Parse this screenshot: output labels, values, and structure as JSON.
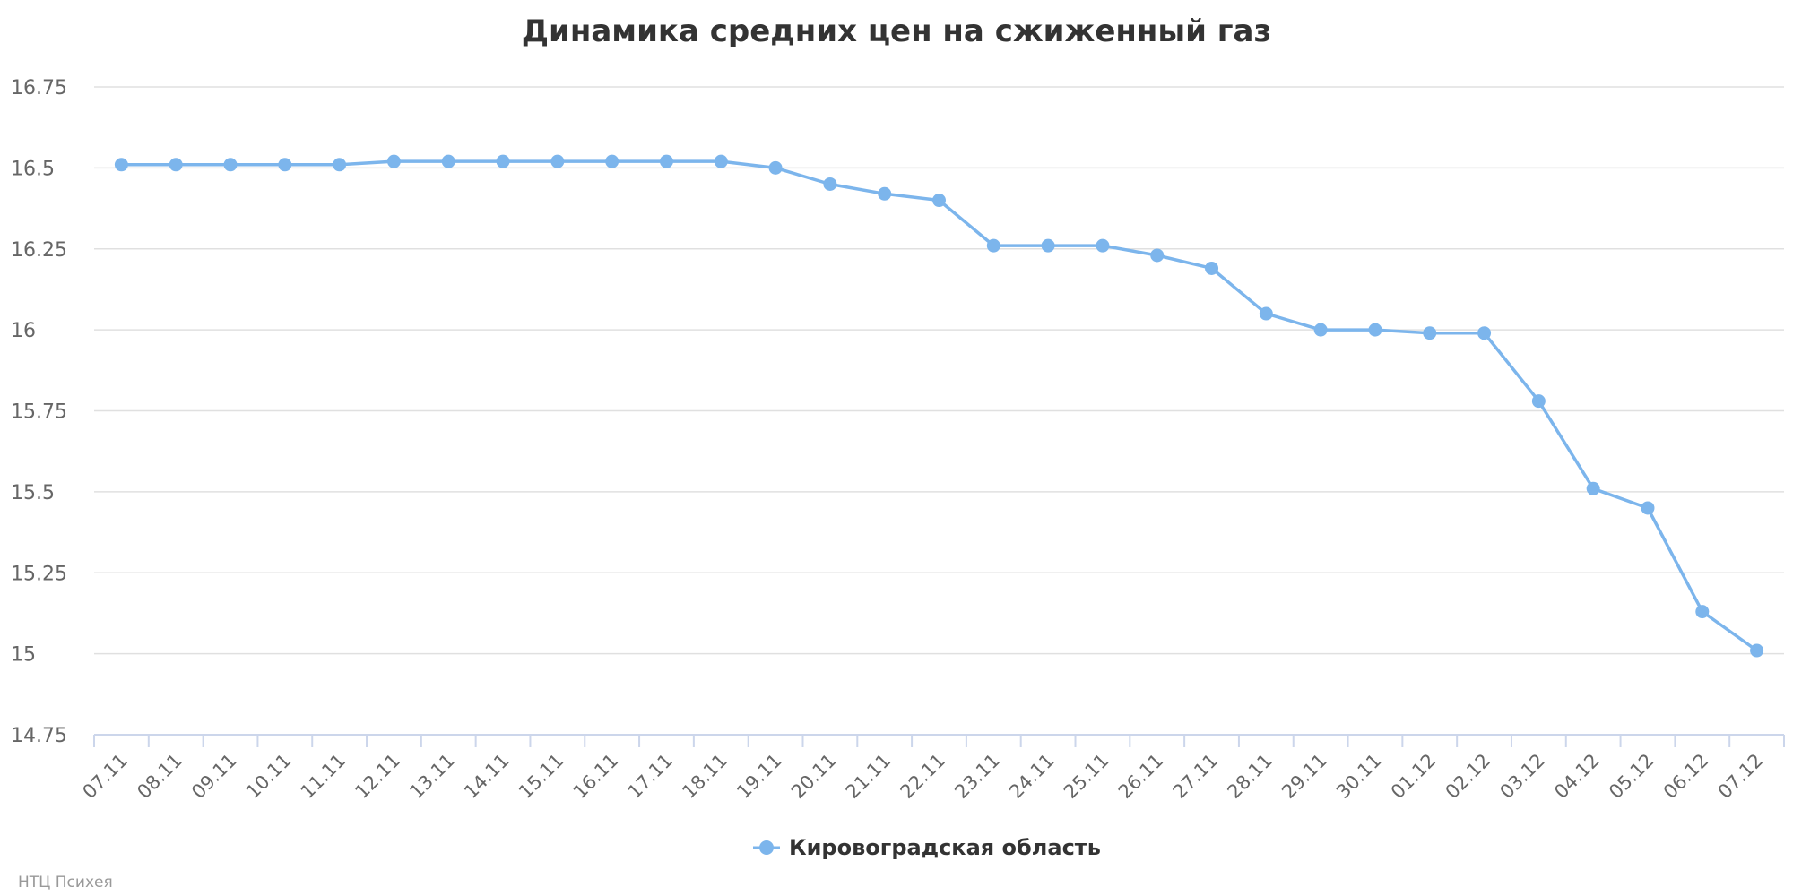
{
  "chart_data": {
    "type": "line",
    "title": "Динамика средних цен на сжиженный газ",
    "categories": [
      "07.11",
      "08.11",
      "09.11",
      "10.11",
      "11.11",
      "12.11",
      "13.11",
      "14.11",
      "15.11",
      "16.11",
      "17.11",
      "18.11",
      "19.11",
      "20.11",
      "21.11",
      "22.11",
      "23.11",
      "24.11",
      "25.11",
      "26.11",
      "27.11",
      "28.11",
      "29.11",
      "30.11",
      "01.12",
      "02.12",
      "03.12",
      "04.12",
      "05.12",
      "06.12",
      "07.12"
    ],
    "series": [
      {
        "name": "Кировоградская область",
        "color": "#7cb5ec",
        "values": [
          16.51,
          16.51,
          16.51,
          16.51,
          16.51,
          16.52,
          16.52,
          16.52,
          16.52,
          16.52,
          16.52,
          16.52,
          16.5,
          16.45,
          16.42,
          16.4,
          16.26,
          16.26,
          16.26,
          16.23,
          16.19,
          16.05,
          16.0,
          16.0,
          15.99,
          15.99,
          15.78,
          15.51,
          15.45,
          15.13,
          15.01
        ]
      }
    ],
    "yticks": [
      "14.75",
      "15",
      "15.25",
      "15.5",
      "15.75",
      "16",
      "16.25",
      "16.5",
      "16.75"
    ],
    "ylim": [
      14.75,
      16.75
    ],
    "grid": true,
    "legend_position": "bottom-center",
    "credit": "НТЦ Психея"
  }
}
